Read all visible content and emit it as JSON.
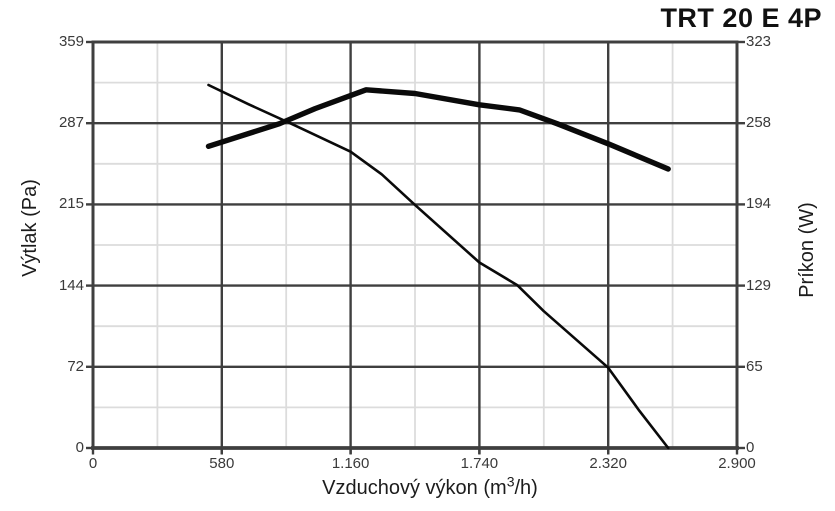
{
  "title": "TRT 20 E 4P",
  "chart_data": {
    "type": "line",
    "title": "TRT 20 E 4P",
    "grid": "major-dark-and-minor-light",
    "legend": "none",
    "background": "#ffffff",
    "colors": {
      "major_grid": "#3f3f3f",
      "minor_grid": "#dcdcdc",
      "curve": "#0a0a0a",
      "tick_text": "#3a3a3a",
      "title_text": "#111111"
    },
    "x_axis": {
      "label_prefix": "Vzduchový výkon (m",
      "label_sup": "3",
      "label_suffix": "/h)",
      "range": [
        0,
        2900
      ],
      "ticks": [
        0,
        580,
        1160,
        1740,
        2320,
        2900
      ],
      "tick_labels": [
        "0",
        "580",
        "1.160",
        "1.740",
        "2.320",
        "2.900"
      ]
    },
    "y_axis_left": {
      "label": "Výtlak (Pa)",
      "range": [
        0,
        359
      ],
      "ticks": [
        0,
        72,
        144,
        215,
        287,
        359
      ],
      "tick_labels": [
        "0",
        "72",
        "144",
        "215",
        "287",
        "359"
      ]
    },
    "y_axis_right": {
      "label": "Príkon (W)",
      "range": [
        0,
        323
      ],
      "ticks": [
        0,
        65,
        129,
        194,
        258,
        323
      ],
      "tick_labels": [
        "0",
        "65",
        "129",
        "194",
        "258",
        "323"
      ]
    },
    "series": [
      {
        "name": "pressure-curve",
        "axis": "left",
        "unit": "Pa",
        "style": "thin",
        "stroke_width": 2.6,
        "points": [
          [
            520,
            321
          ],
          [
            700,
            304
          ],
          [
            890,
            287
          ],
          [
            1160,
            262
          ],
          [
            1300,
            242
          ],
          [
            1450,
            215
          ],
          [
            1740,
            164
          ],
          [
            1910,
            144
          ],
          [
            2030,
            121
          ],
          [
            2320,
            71
          ],
          [
            2460,
            33
          ],
          [
            2590,
            0
          ]
        ]
      },
      {
        "name": "power-curve",
        "axis": "right",
        "unit": "W",
        "style": "thick",
        "stroke_width": 5.4,
        "points": [
          [
            520,
            240
          ],
          [
            840,
            258
          ],
          [
            1000,
            270
          ],
          [
            1230,
            285
          ],
          [
            1450,
            282
          ],
          [
            1740,
            273
          ],
          [
            1920,
            269
          ],
          [
            2090,
            258
          ],
          [
            2320,
            242
          ],
          [
            2590,
            222
          ]
        ]
      }
    ]
  }
}
